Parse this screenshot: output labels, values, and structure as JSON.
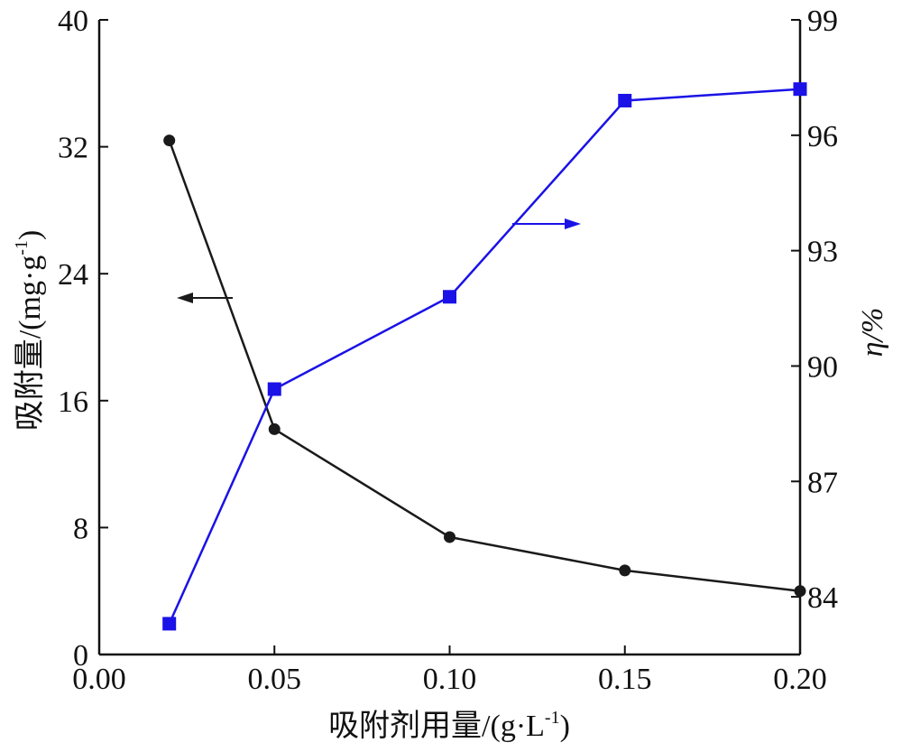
{
  "chart_data": {
    "type": "line",
    "title": "",
    "xlabel": "吸附剂用量/(g·L",
    "xlabel_sup": "-1",
    "xlabel_tail": ")",
    "ylabel_left": "吸附量/(mg·g",
    "ylabel_left_sup": "-1",
    "ylabel_left_tail": ")",
    "ylabel_right": "η/%",
    "x": [
      0.02,
      0.05,
      0.1,
      0.15,
      0.2
    ],
    "xlim": [
      0.0,
      0.2
    ],
    "ylim_left": [
      0,
      40
    ],
    "ylim_right": [
      82.5,
      99
    ],
    "x_ticks": [
      "0.00",
      "0.05",
      "0.10",
      "0.15",
      "0.20"
    ],
    "x_tick_values": [
      0.0,
      0.05,
      0.1,
      0.15,
      0.2
    ],
    "y_left_ticks": [
      "0",
      "8",
      "16",
      "24",
      "32",
      "40"
    ],
    "y_left_tick_values": [
      0,
      8,
      16,
      24,
      32,
      40
    ],
    "y_right_ticks": [
      "84",
      "87",
      "90",
      "93",
      "96",
      "99"
    ],
    "y_right_tick_values": [
      84,
      87,
      90,
      93,
      96,
      99
    ],
    "grid": false,
    "series": [
      {
        "axis": "left",
        "color": "#1a1a1a",
        "marker": "circle",
        "values": [
          32.4,
          14.2,
          7.4,
          5.3,
          4.0
        ]
      },
      {
        "axis": "right",
        "color": "#1a12e6",
        "marker": "square",
        "values": [
          83.3,
          89.4,
          91.8,
          96.9,
          97.2
        ]
      }
    ]
  }
}
